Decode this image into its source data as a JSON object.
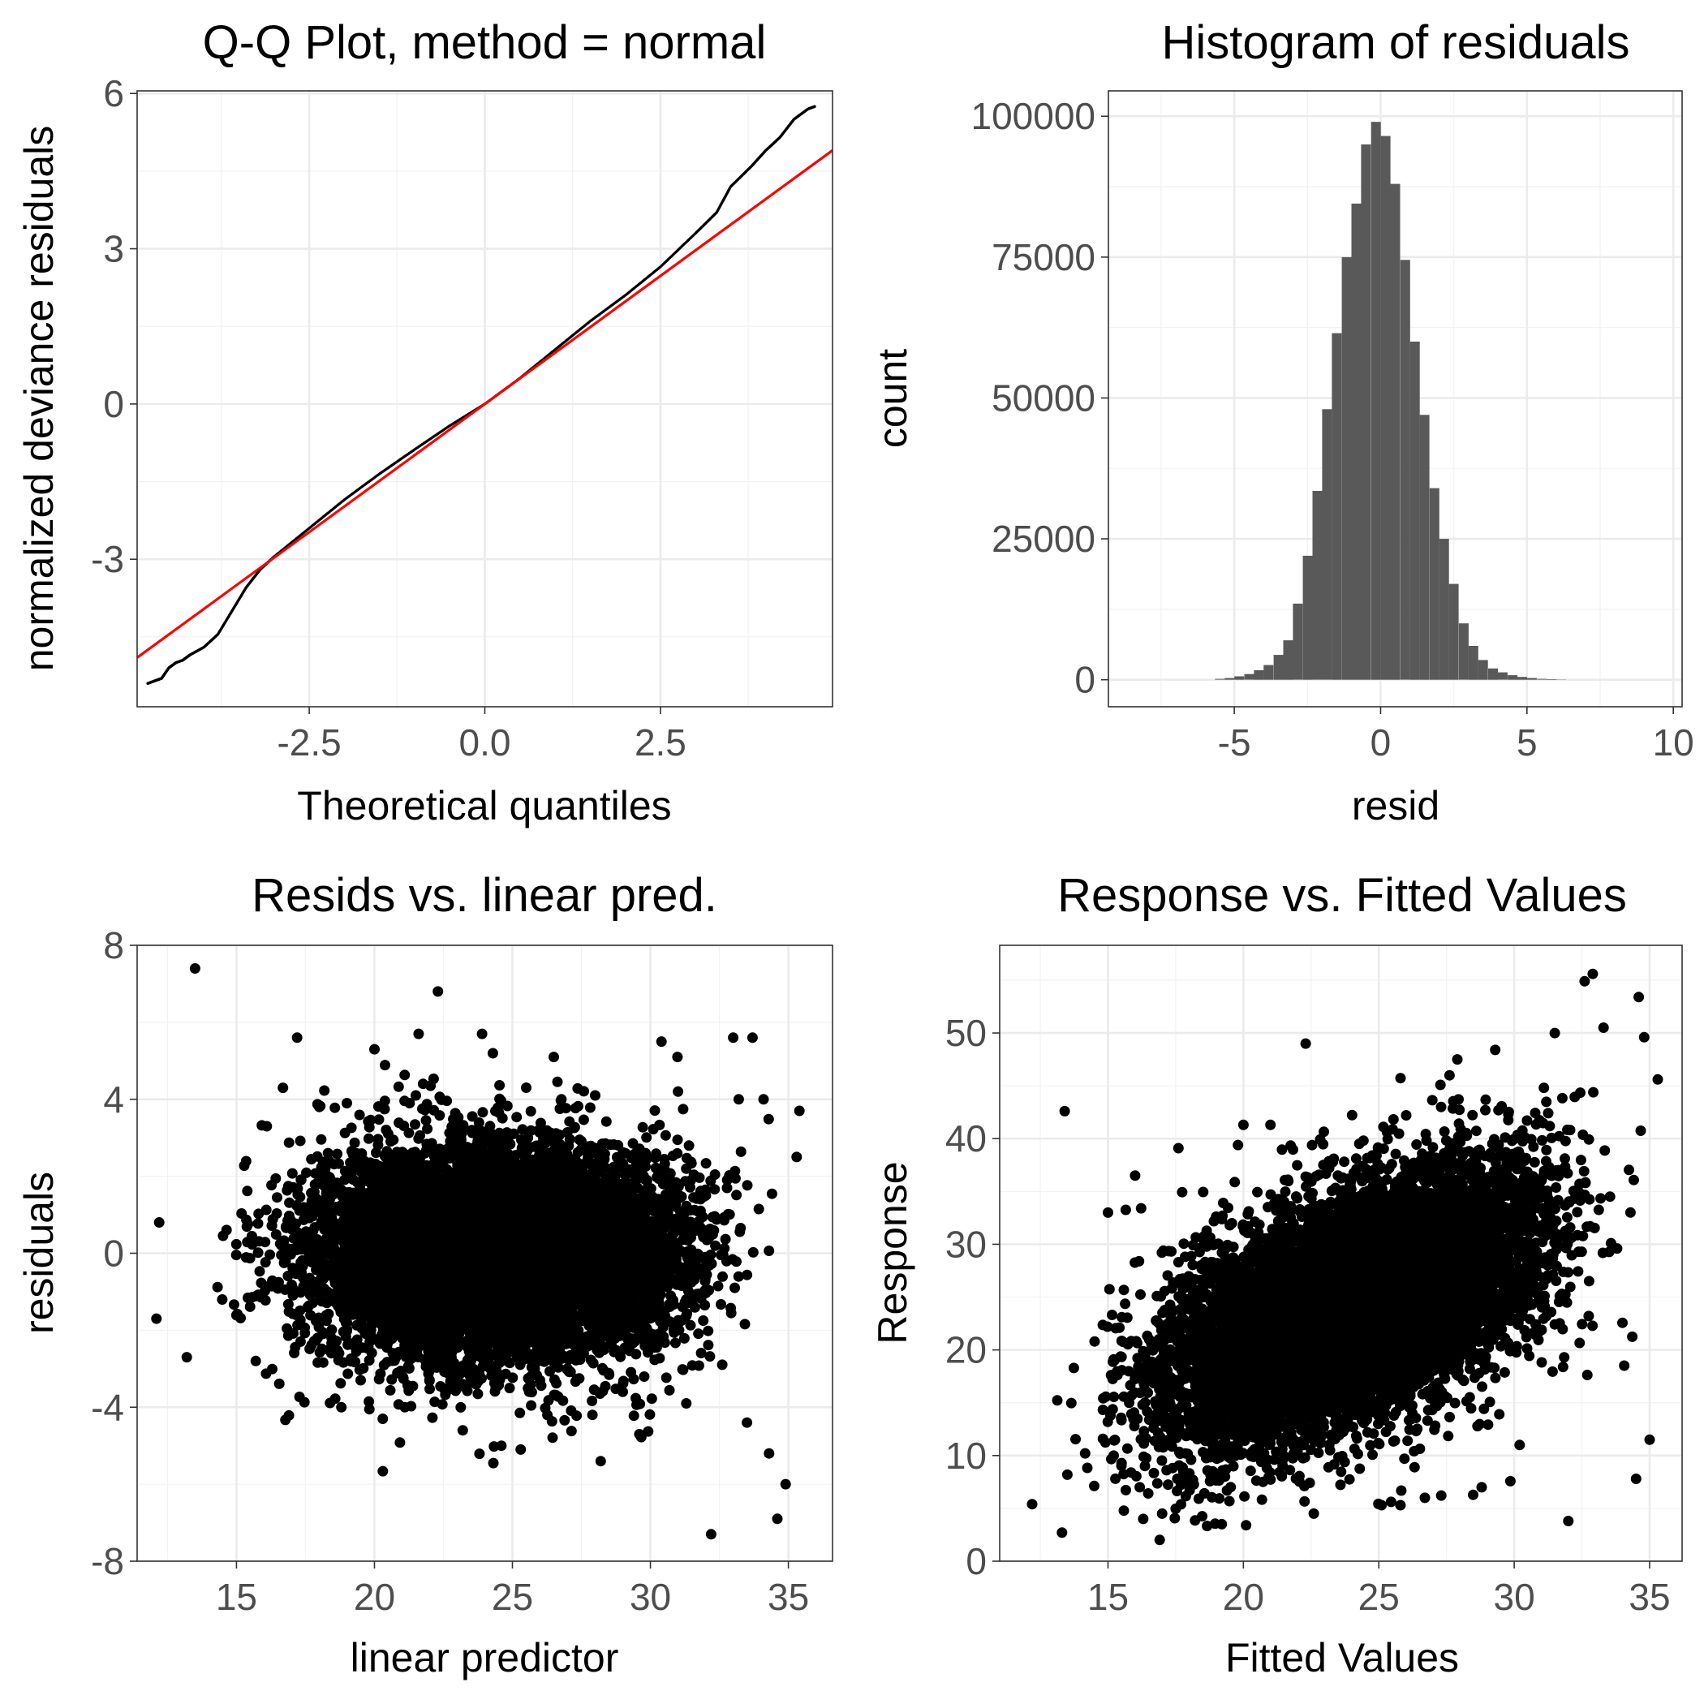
{
  "figure": {
    "colors": {
      "points": "#000000",
      "bars": "#595959",
      "reference_line": "#ff0000",
      "panel_border": "#333333",
      "grid": "#ebebeb",
      "tick_text": "#4d4d4d"
    }
  },
  "chart_data": [
    {
      "id": "qq",
      "type": "scatter",
      "title": "Q-Q Plot, method = normal",
      "xlabel": "Theoretical quantiles",
      "ylabel": "normalized deviance residuals",
      "xlim": [
        -4.95,
        4.95
      ],
      "ylim": [
        -5.85,
        6.05
      ],
      "xticks": [
        -2.5,
        0.0,
        2.5
      ],
      "xtick_labels": [
        "-2.5",
        "0.0",
        "2.5"
      ],
      "yticks": [
        -3,
        0,
        3,
        6
      ],
      "ytick_labels": [
        "-3",
        "0",
        "3",
        "6"
      ],
      "grid": true,
      "series": [
        {
          "kind": "points",
          "color": "#000000",
          "x": [
            -4.8,
            -4.7,
            -4.6,
            -4.5,
            -4.4,
            -4.3,
            -4.2,
            -4.0,
            -3.8,
            -3.6,
            -3.4,
            -3.2,
            -3.0,
            -2.5,
            -2.0,
            -1.5,
            -1.0,
            -0.5,
            0.0,
            0.5,
            1.0,
            1.5,
            2.0,
            2.5,
            3.0,
            3.3,
            3.5,
            3.8,
            4.0,
            4.2,
            4.4,
            4.6,
            4.7
          ],
          "y": [
            -5.4,
            -5.35,
            -5.3,
            -5.1,
            -5.0,
            -4.95,
            -4.85,
            -4.7,
            -4.45,
            -4.0,
            -3.55,
            -3.2,
            -2.95,
            -2.4,
            -1.85,
            -1.35,
            -0.88,
            -0.42,
            0.0,
            0.5,
            1.05,
            1.6,
            2.1,
            2.65,
            3.3,
            3.7,
            4.2,
            4.6,
            4.9,
            5.15,
            5.5,
            5.7,
            5.75
          ]
        },
        {
          "kind": "reference-line",
          "color": "#ff0000",
          "intercept": 0.0,
          "slope": 0.99
        }
      ]
    },
    {
      "id": "hist",
      "type": "bar",
      "title": "Histogram of residuals",
      "xlabel": "resid",
      "ylabel": "count",
      "xlim": [
        -9.3,
        10.3
      ],
      "ylim": [
        -4800,
        104500
      ],
      "xticks": [
        -5,
        0,
        5,
        10
      ],
      "xtick_labels": [
        "-5",
        "0",
        "5",
        "10"
      ],
      "yticks": [
        0,
        25000,
        50000,
        75000,
        100000
      ],
      "ytick_labels": [
        "0",
        "25000",
        "50000",
        "75000",
        "100000"
      ],
      "grid": true,
      "bin_width": 0.333,
      "bin_centers": [
        -5.49,
        -5.16,
        -4.83,
        -4.49,
        -4.16,
        -3.83,
        -3.49,
        -3.16,
        -2.83,
        -2.49,
        -2.16,
        -1.83,
        -1.5,
        -1.16,
        -0.83,
        -0.5,
        -0.16,
        0.17,
        0.5,
        0.84,
        1.17,
        1.5,
        1.84,
        2.17,
        2.5,
        2.84,
        3.17,
        3.5,
        3.84,
        4.17,
        4.51,
        4.84,
        5.17,
        5.51,
        5.84,
        6.17
      ],
      "values": [
        150,
        300,
        600,
        1000,
        1700,
        2600,
        4400,
        7000,
        13500,
        22000,
        33500,
        48000,
        61500,
        75000,
        84500,
        95000,
        99000,
        96500,
        88000,
        74500,
        60000,
        47000,
        34000,
        25000,
        17000,
        10000,
        6000,
        3500,
        2000,
        1300,
        800,
        500,
        300,
        150,
        100,
        50
      ]
    },
    {
      "id": "resid-vs-pred",
      "type": "scatter",
      "title": "Resids vs. linear pred.",
      "xlabel": "linear predictor",
      "ylabel": "residuals",
      "xlim": [
        11.4,
        36.6
      ],
      "ylim": [
        -8.0,
        8.0
      ],
      "xticks": [
        15,
        20,
        25,
        30,
        35
      ],
      "xtick_labels": [
        "15",
        "20",
        "25",
        "30",
        "35"
      ],
      "yticks": [
        -8,
        -4,
        0,
        4,
        8
      ],
      "ytick_labels": [
        "-8",
        "-4",
        "0",
        "4",
        "8"
      ],
      "grid": true,
      "points": [
        [
          13.5,
          7.4
        ],
        [
          22.3,
          6.8
        ],
        [
          12.2,
          0.8
        ],
        [
          12.1,
          -1.7
        ],
        [
          13.2,
          -2.7
        ],
        [
          32.2,
          -7.3
        ],
        [
          34.6,
          -6.9
        ],
        [
          34.9,
          -6.0
        ],
        [
          34.3,
          -5.2
        ],
        [
          28.2,
          -5.4
        ],
        [
          29.6,
          -4.7
        ],
        [
          25.3,
          -5.1
        ],
        [
          24.6,
          -5.0
        ],
        [
          17.2,
          5.6
        ],
        [
          20.0,
          5.3
        ],
        [
          21.6,
          5.7
        ],
        [
          23.9,
          5.7
        ],
        [
          26.5,
          5.1
        ],
        [
          30.4,
          5.5
        ],
        [
          33.0,
          5.6
        ],
        [
          33.7,
          5.6
        ],
        [
          35.4,
          3.7
        ],
        [
          35.3,
          2.5
        ],
        [
          34.1,
          4.0
        ],
        [
          16.1,
          3.3
        ],
        [
          15.7,
          -2.8
        ],
        [
          18.8,
          -4.0
        ],
        [
          20.3,
          -4.3
        ],
        [
          21.1,
          -4.0
        ],
        [
          19.5,
          -3.3
        ],
        [
          23.2,
          -4.6
        ],
        [
          27.9,
          -4.2
        ],
        [
          31.3,
          -3.9
        ],
        [
          33.5,
          -4.4
        ],
        [
          29.0,
          -3.6
        ],
        [
          26.0,
          -3.3
        ],
        [
          24.2,
          -3.0
        ],
        [
          18.0,
          3.8
        ],
        [
          19.0,
          3.9
        ],
        [
          21.5,
          4.1
        ],
        [
          25.5,
          4.3
        ],
        [
          28.0,
          4.1
        ],
        [
          31.0,
          4.2
        ],
        [
          33.2,
          4.0
        ]
      ],
      "cloud": {
        "x_range": [
          13.3,
          35.6
        ],
        "y_mean": 0.0,
        "y_sd": 1.35
      }
    },
    {
      "id": "response-vs-fitted",
      "type": "scatter",
      "title": "Response vs. Fitted Values",
      "xlabel": "Fitted Values",
      "ylabel": "Response",
      "xlim": [
        11.0,
        36.2
      ],
      "ylim": [
        0.0,
        58.3
      ],
      "xticks": [
        15,
        20,
        25,
        30,
        35
      ],
      "xtick_labels": [
        "15",
        "20",
        "25",
        "30",
        "35"
      ],
      "yticks": [
        0,
        10,
        20,
        30,
        40,
        50
      ],
      "ytick_labels": [
        "0",
        "10",
        "20",
        "30",
        "40",
        "50"
      ],
      "grid": true,
      "points": [
        [
          13.4,
          42.6
        ],
        [
          12.2,
          5.4
        ],
        [
          13.3,
          2.7
        ],
        [
          32.0,
          3.8
        ],
        [
          34.5,
          7.8
        ],
        [
          32.9,
          55.6
        ],
        [
          34.6,
          53.4
        ],
        [
          32.6,
          54.9
        ],
        [
          22.3,
          49.0
        ],
        [
          27.9,
          47.5
        ],
        [
          35.0,
          11.5
        ],
        [
          16.0,
          36.5
        ],
        [
          17.6,
          39.1
        ],
        [
          19.8,
          39.4
        ],
        [
          20.0,
          41.3
        ],
        [
          21.0,
          41.3
        ],
        [
          15.0,
          33.0
        ],
        [
          16.3,
          4.0
        ],
        [
          17.0,
          4.5
        ],
        [
          19.2,
          3.5
        ],
        [
          20.1,
          3.4
        ],
        [
          22.6,
          4.5
        ],
        [
          25.1,
          5.3
        ],
        [
          25.8,
          5.3
        ],
        [
          26.7,
          6.0
        ],
        [
          28.8,
          7.0
        ],
        [
          30.2,
          11.0
        ],
        [
          31.5,
          50.0
        ],
        [
          33.3,
          50.5
        ],
        [
          34.8,
          49.6
        ],
        [
          35.3,
          45.6
        ],
        [
          29.3,
          48.4
        ]
      ],
      "cloud": {
        "x_range": [
          12.4,
          35.6
        ],
        "y_offset": 0.0,
        "y_slope": 1.0,
        "y_sd": 5.4
      }
    }
  ]
}
